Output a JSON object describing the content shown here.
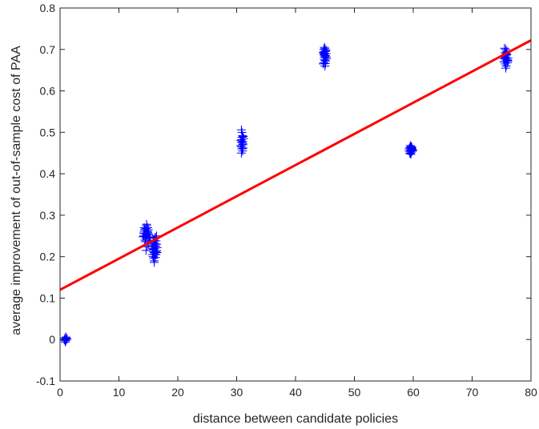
{
  "chart_data": {
    "type": "scatter",
    "xlabel": "distance between candidate policies",
    "ylabel": "average improvement of out-of-sample cost of PAA",
    "xlim": [
      0,
      80
    ],
    "ylim": [
      -0.1,
      0.8
    ],
    "x_ticks": [
      0,
      10,
      20,
      30,
      40,
      50,
      60,
      70,
      80
    ],
    "x_tick_labels": [
      "0",
      "10",
      "20",
      "30",
      "40",
      "50",
      "60",
      "70",
      "80"
    ],
    "y_ticks": [
      -0.1,
      0,
      0.1,
      0.2,
      0.3,
      0.4,
      0.5,
      0.6,
      0.7,
      0.8
    ],
    "y_tick_labels": [
      "-0.1",
      "0",
      "0.1",
      "0.2",
      "0.3",
      "0.4",
      "0.5",
      "0.6",
      "0.7",
      "0.8"
    ],
    "grid": false,
    "box": true,
    "marker": "+",
    "marker_color": "#0000ff",
    "line_color": "#ff0000",
    "axis_color": "#262626",
    "series": [
      {
        "marker": "+",
        "points": [
          [
            0.8,
            0.0
          ],
          [
            1.0,
            0.004
          ],
          [
            0.9,
            -0.003
          ],
          [
            1.1,
            0.002
          ],
          [
            0.7,
            -0.001
          ],
          [
            1.0,
            0.006
          ],
          [
            0.9,
            -0.006
          ],
          [
            1.2,
            0.001
          ],
          [
            0.8,
            0.003
          ],
          [
            1.0,
            -0.002
          ],
          [
            14.2,
            0.25
          ],
          [
            14.5,
            0.262
          ],
          [
            14.8,
            0.255
          ],
          [
            14.3,
            0.27
          ],
          [
            14.6,
            0.245
          ],
          [
            15.0,
            0.265
          ],
          [
            14.4,
            0.24
          ],
          [
            14.9,
            0.258
          ],
          [
            14.7,
            0.275
          ],
          [
            14.1,
            0.248
          ],
          [
            14.6,
            0.268
          ],
          [
            15.1,
            0.252
          ],
          [
            14.3,
            0.262
          ],
          [
            14.8,
            0.244
          ],
          [
            14.5,
            0.236
          ],
          [
            14.9,
            0.27
          ],
          [
            14.2,
            0.257
          ],
          [
            14.7,
            0.262
          ],
          [
            15.2,
            0.248
          ],
          [
            14.4,
            0.266
          ],
          [
            15.0,
            0.232
          ],
          [
            14.6,
            0.253
          ],
          [
            15.3,
            0.24
          ],
          [
            14.8,
            0.224
          ],
          [
            15.1,
            0.246
          ],
          [
            14.3,
            0.256
          ],
          [
            14.7,
            0.278
          ],
          [
            14.5,
            0.249
          ],
          [
            14.9,
            0.261
          ],
          [
            15.0,
            0.255
          ],
          [
            14.6,
            0.215
          ],
          [
            15.7,
            0.22
          ],
          [
            16.0,
            0.21
          ],
          [
            16.3,
            0.23
          ],
          [
            15.8,
            0.2
          ],
          [
            16.1,
            0.245
          ],
          [
            16.4,
            0.215
          ],
          [
            15.9,
            0.235
          ],
          [
            16.2,
            0.225
          ],
          [
            16.0,
            0.19
          ],
          [
            15.6,
            0.228
          ],
          [
            16.3,
            0.205
          ],
          [
            16.5,
            0.222
          ],
          [
            15.9,
            0.212
          ],
          [
            16.1,
            0.232
          ],
          [
            16.4,
            0.25
          ],
          [
            15.8,
            0.218
          ],
          [
            16.2,
            0.198
          ],
          [
            16.0,
            0.24
          ],
          [
            16.5,
            0.21
          ],
          [
            15.7,
            0.205
          ],
          [
            16.3,
            0.238
          ],
          [
            16.1,
            0.22
          ],
          [
            15.9,
            0.196
          ],
          [
            16.2,
            0.226
          ],
          [
            16.0,
            0.216
          ],
          [
            16.4,
            0.23
          ],
          [
            15.8,
            0.24
          ],
          [
            16.3,
            0.212
          ],
          [
            15.6,
            0.225
          ],
          [
            16.1,
            0.207
          ],
          [
            16.0,
            0.186
          ],
          [
            16.2,
            0.247
          ],
          [
            30.8,
            0.45
          ],
          [
            30.9,
            0.46
          ],
          [
            31.0,
            0.47
          ],
          [
            30.7,
            0.48
          ],
          [
            31.1,
            0.49
          ],
          [
            30.9,
            0.5
          ],
          [
            31.0,
            0.455
          ],
          [
            30.8,
            0.465
          ],
          [
            30.9,
            0.475
          ],
          [
            31.2,
            0.485
          ],
          [
            30.7,
            0.468
          ],
          [
            31.0,
            0.478
          ],
          [
            30.9,
            0.488
          ],
          [
            31.1,
            0.472
          ],
          [
            30.8,
            0.482
          ],
          [
            30.9,
            0.46
          ],
          [
            31.0,
            0.492
          ],
          [
            30.8,
            0.506
          ],
          [
            31.1,
            0.462
          ],
          [
            30.9,
            0.476
          ],
          [
            44.7,
            0.665
          ],
          [
            44.9,
            0.675
          ],
          [
            45.1,
            0.685
          ],
          [
            45.0,
            0.695
          ],
          [
            44.8,
            0.7
          ],
          [
            45.2,
            0.69
          ],
          [
            44.9,
            0.68
          ],
          [
            45.1,
            0.672
          ],
          [
            45.0,
            0.66
          ],
          [
            44.8,
            0.688
          ],
          [
            45.2,
            0.698
          ],
          [
            44.9,
            0.705
          ],
          [
            45.0,
            0.683
          ],
          [
            44.7,
            0.692
          ],
          [
            45.3,
            0.678
          ],
          [
            45.0,
            0.69
          ],
          [
            44.8,
            0.668
          ],
          [
            45.1,
            0.696
          ],
          [
            44.9,
            0.686
          ],
          [
            45.0,
            0.674
          ],
          [
            45.2,
            0.682
          ],
          [
            44.8,
            0.694
          ],
          [
            45.0,
            0.702
          ],
          [
            45.1,
            0.666
          ],
          [
            44.9,
            0.691
          ],
          [
            59.3,
            0.455
          ],
          [
            59.5,
            0.46
          ],
          [
            59.7,
            0.465
          ],
          [
            59.4,
            0.45
          ],
          [
            59.8,
            0.462
          ],
          [
            59.6,
            0.458
          ],
          [
            59.9,
            0.455
          ],
          [
            59.5,
            0.468
          ],
          [
            59.7,
            0.452
          ],
          [
            59.4,
            0.463
          ],
          [
            59.6,
            0.447
          ],
          [
            59.8,
            0.459
          ],
          [
            59.5,
            0.454
          ],
          [
            59.7,
            0.461
          ],
          [
            59.3,
            0.46
          ],
          [
            59.6,
            0.466
          ],
          [
            59.9,
            0.457
          ],
          [
            59.5,
            0.449
          ],
          [
            59.7,
            0.464
          ],
          [
            59.6,
            0.456
          ],
          [
            75.4,
            0.67
          ],
          [
            75.6,
            0.68
          ],
          [
            75.8,
            0.69
          ],
          [
            76.0,
            0.675
          ],
          [
            75.5,
            0.685
          ],
          [
            75.9,
            0.695
          ],
          [
            75.7,
            0.7
          ],
          [
            75.6,
            0.665
          ],
          [
            76.1,
            0.672
          ],
          [
            75.8,
            0.66
          ],
          [
            75.5,
            0.677
          ],
          [
            75.9,
            0.688
          ],
          [
            75.7,
            0.682
          ],
          [
            76.0,
            0.668
          ],
          [
            75.6,
            0.692
          ],
          [
            75.8,
            0.674
          ],
          [
            75.4,
            0.684
          ],
          [
            76.1,
            0.679
          ],
          [
            75.7,
            0.655
          ],
          [
            75.9,
            0.696
          ],
          [
            75.6,
            0.67
          ],
          [
            75.8,
            0.686
          ],
          [
            75.5,
            0.703
          ],
          [
            76.0,
            0.673
          ],
          [
            75.7,
            0.678
          ]
        ]
      },
      {
        "type": "line",
        "x": [
          0,
          80
        ],
        "y": [
          0.12,
          0.722
        ]
      }
    ]
  }
}
